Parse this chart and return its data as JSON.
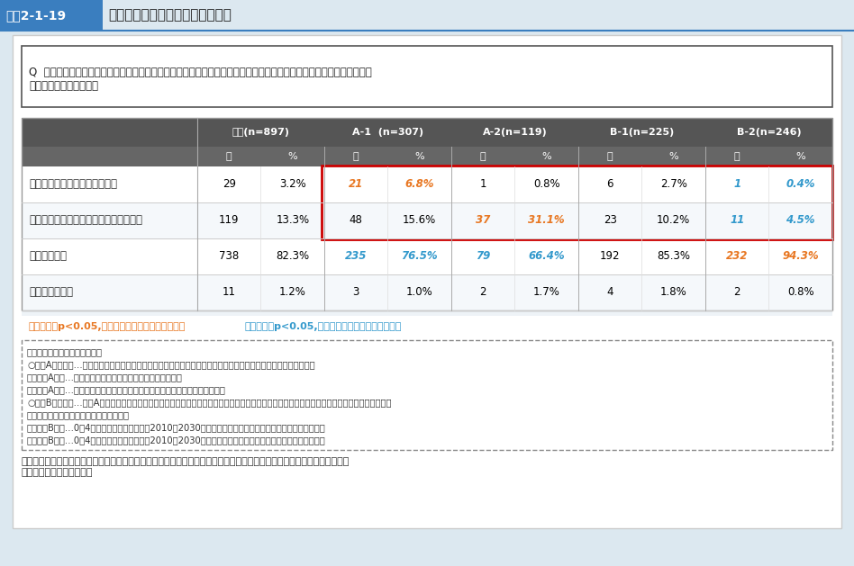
{
  "title_box_label": "図表2-1-19",
  "title_text": "保育所の運営継続の困難さの状況",
  "question_text": "Q  自治体において、人口減少の影響により、域内の保育所等の多くが定員割れを起こし運営の継続が困難となっている\n　事態は生じてますか。",
  "header_row1": [
    "",
    "全体(n=897)",
    "",
    "A-1  (n=307)",
    "",
    "A-2(n=119)",
    "",
    "B-1(n=225)",
    "",
    "B-2(n=246)",
    ""
  ],
  "header_row2": [
    "",
    "数",
    "%",
    "数",
    "%",
    "数",
    "%",
    "数",
    "%",
    "数",
    "%"
  ],
  "rows": [
    {
      "label": "自治体全域において生じている",
      "data": [
        {
          "val": "29",
          "pct": "3.2%",
          "val_color": "black",
          "pct_color": "black"
        },
        {
          "val": "21",
          "pct": "6.8%",
          "val_color": "#E87722",
          "pct_color": "#E87722"
        },
        {
          "val": "1",
          "pct": "0.8%",
          "val_color": "black",
          "pct_color": "black"
        },
        {
          "val": "6",
          "pct": "2.7%",
          "val_color": "black",
          "pct_color": "black"
        },
        {
          "val": "1",
          "pct": "0.4%",
          "val_color": "#3399CC",
          "pct_color": "#3399CC"
        }
      ],
      "highlight_red_box": true
    },
    {
      "label": "自治体内の一部地区において生じている",
      "data": [
        {
          "val": "119",
          "pct": "13.3%",
          "val_color": "black",
          "pct_color": "black"
        },
        {
          "val": "48",
          "pct": "15.6%",
          "val_color": "black",
          "pct_color": "black"
        },
        {
          "val": "37",
          "pct": "31.1%",
          "val_color": "#E87722",
          "pct_color": "#E87722"
        },
        {
          "val": "23",
          "pct": "10.2%",
          "val_color": "black",
          "pct_color": "black"
        },
        {
          "val": "11",
          "pct": "4.5%",
          "val_color": "#3399CC",
          "pct_color": "#3399CC"
        }
      ],
      "highlight_red_box": true
    },
    {
      "label": "生じていない",
      "data": [
        {
          "val": "738",
          "pct": "82.3%",
          "val_color": "black",
          "pct_color": "black"
        },
        {
          "val": "235",
          "pct": "76.5%",
          "val_color": "#3399CC",
          "pct_color": "#3399CC"
        },
        {
          "val": "79",
          "pct": "66.4%",
          "val_color": "#3399CC",
          "pct_color": "#3399CC"
        },
        {
          "val": "192",
          "pct": "85.3%",
          "val_color": "black",
          "pct_color": "black"
        },
        {
          "val": "232",
          "pct": "94.3%",
          "val_color": "#E87722",
          "pct_color": "#E87722"
        }
      ],
      "highlight_red_box": false
    },
    {
      "label": "把握していない",
      "data": [
        {
          "val": "11",
          "pct": "1.2%",
          "val_color": "black",
          "pct_color": "black"
        },
        {
          "val": "3",
          "pct": "1.0%",
          "val_color": "black",
          "pct_color": "black"
        },
        {
          "val": "2",
          "pct": "1.7%",
          "val_color": "black",
          "pct_color": "black"
        },
        {
          "val": "4",
          "pct": "1.8%",
          "val_color": "black",
          "pct_color": "black"
        },
        {
          "val": "2",
          "pct": "0.8%",
          "val_color": "black",
          "pct_color": "black"
        }
      ],
      "highlight_red_box": false
    }
  ],
  "legend_text_orange": "オレンジ：p<0.05,全体の割合と比べて割合が高い",
  "legend_text_blue": "ブルー：p<0.05,全体の割合と比べて割合が低い",
  "note_lines": [
    "（参考）自治体の分類の考え方",
    "○分類Aの考え方…過疎地域・離島含む人口減少の影響下にある市町村を、過疎地域や離島を基に以下のとおり分類",
    "　・分類A－１…市町村全体が過疎地域又は市町村全体が離島",
    "　・分類A－２…市町村の中に一部過疎地域を含む又は市町村の中に離島を含む",
    "○分類Bの考え方…分類Aに該当しない地域を、将来的に人口減少の可能性のある市町村とし、以下のとおり、より急速に人口減少が起こる地域と",
    "　緩やかに人口減少が起こる地域とに分類",
    "　・分類B－１…0～4歳人口の将来推計人口の2010～2030年の増減率について中央値より減少率が高い市町村",
    "　・分類B－２…0～4歳人口の将来推計人口の2010～2030年の増減率について中央値より減少率が低い市町村"
  ],
  "source_text": "資料：令和２年度子ども・子育て支援推進調査研究事業「人口減少地域等における保育に関するニーズや事業継続に向けた\n　取組事例に関する調査」",
  "header_bg": "#555555",
  "table_bg_light": "#f0f4f8",
  "outer_bg": "#dce8f0",
  "red_box_color": "#CC0000"
}
